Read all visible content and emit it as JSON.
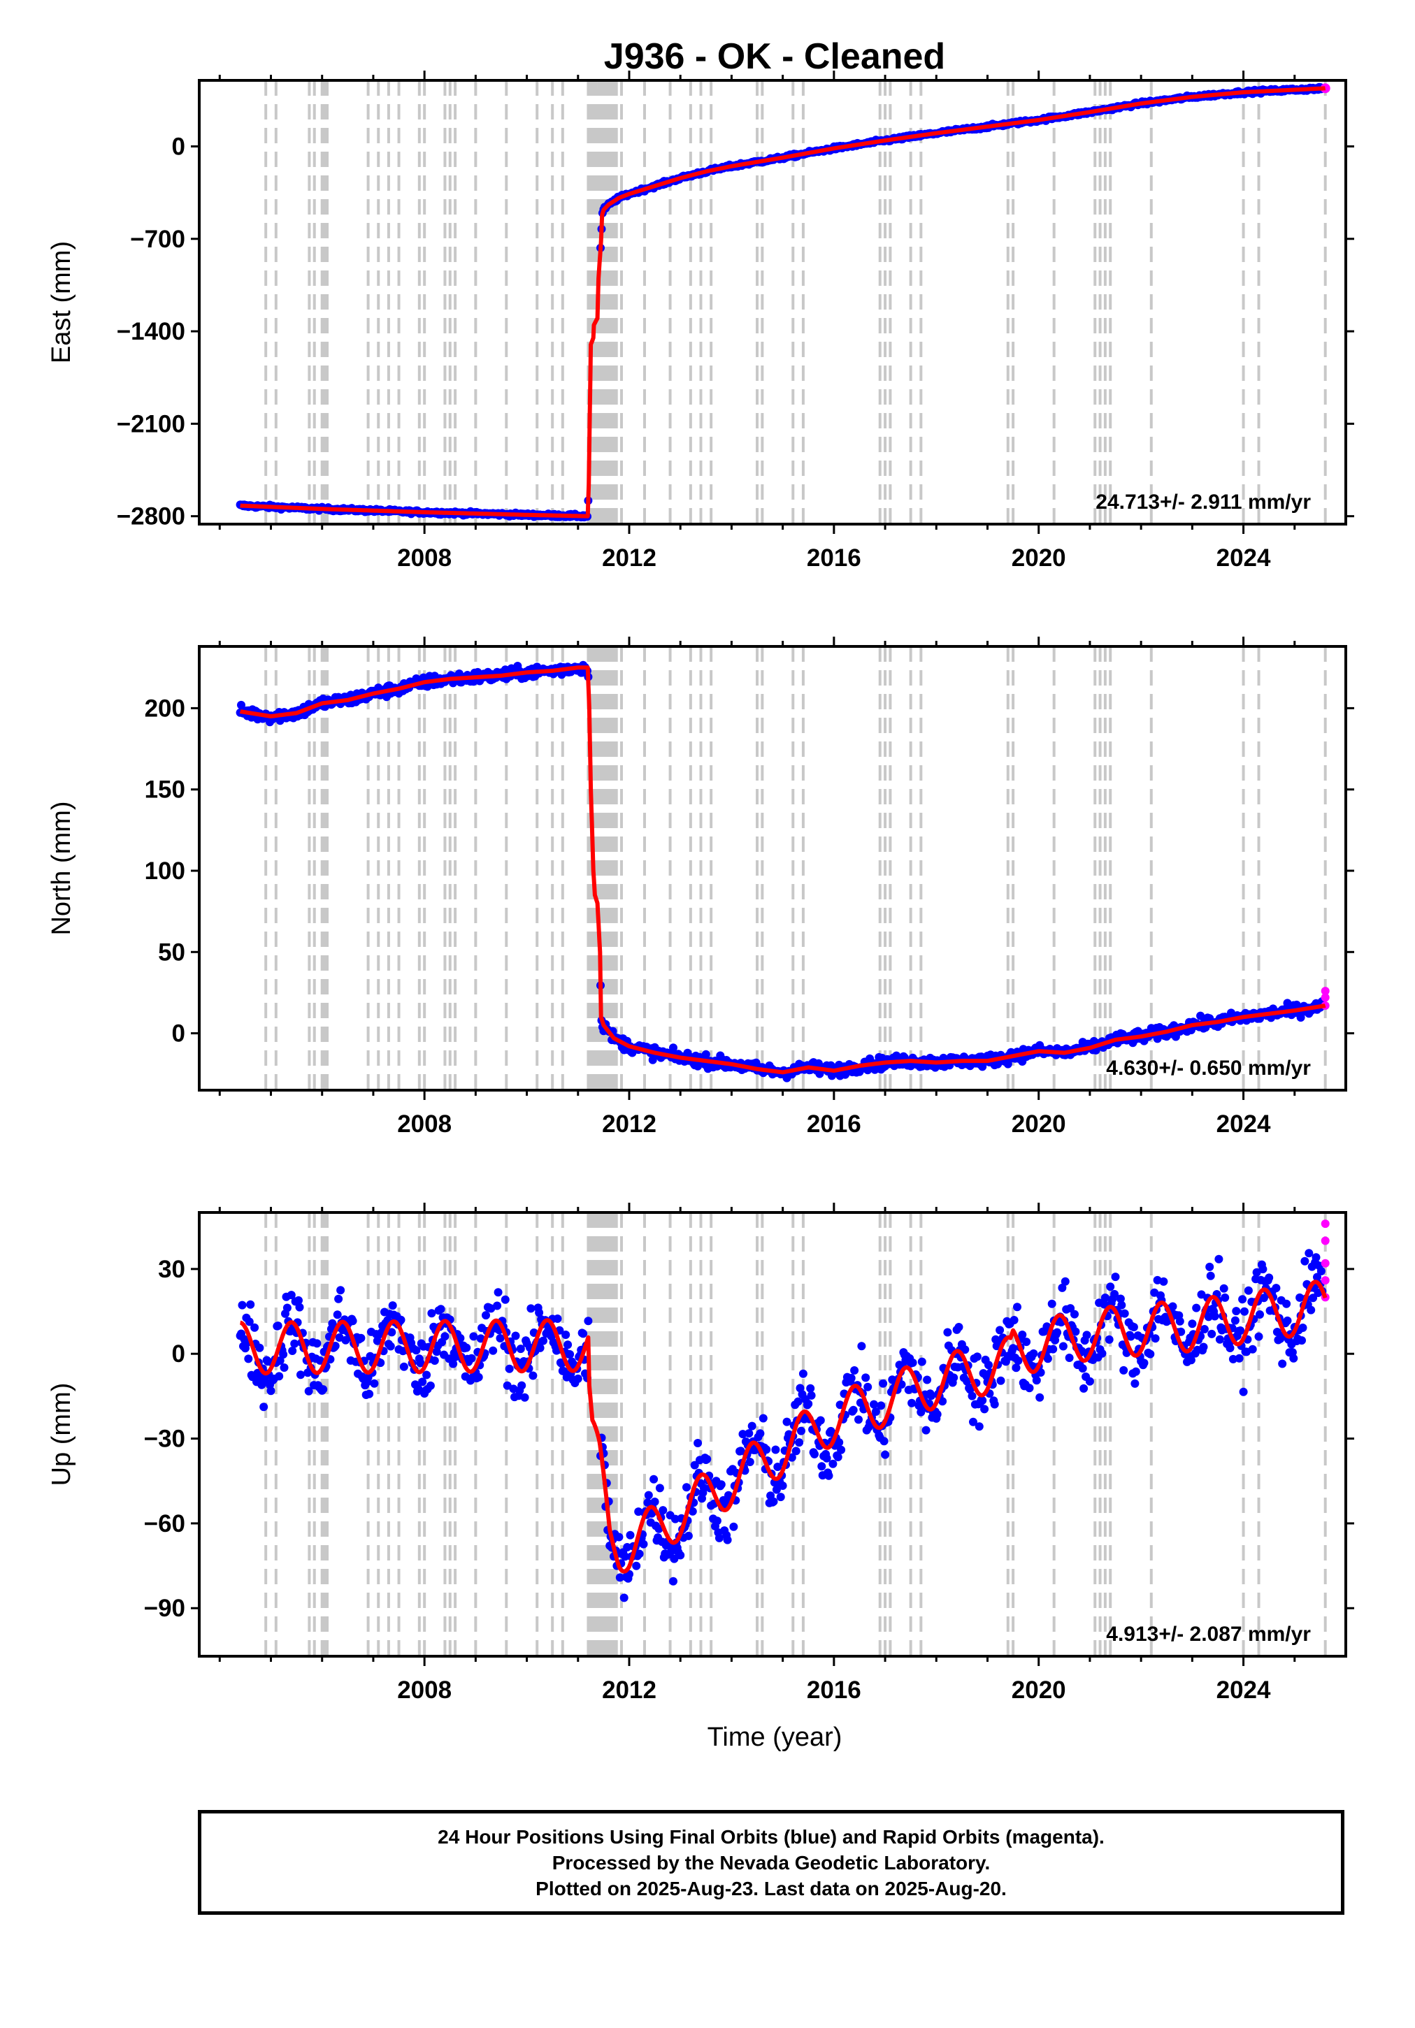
{
  "figure": {
    "title": "J936  - OK - Cleaned",
    "xlabel": "Time (year)",
    "footer_lines": [
      "24 Hour Positions Using Final Orbits (blue) and Rapid Orbits (magenta).",
      "Processed by the Nevada Geodetic Laboratory.",
      "Plotted on 2025-Aug-23. Last data on 2025-Aug-20."
    ]
  },
  "colors": {
    "final": "#0000ff",
    "rapid": "#ff00ff",
    "model": "#ff0000",
    "steps": "#c8c8c8"
  },
  "steps": [
    2004.9,
    2005.1,
    2005.75,
    2005.85,
    2006.0,
    2006.05,
    2006.1,
    2006.9,
    2007.1,
    2007.3,
    2007.5,
    2007.9,
    2008.0,
    2008.4,
    2008.5,
    2008.6,
    2009.0,
    2009.6,
    2010.2,
    2010.5,
    2010.7,
    2011.2,
    2011.25,
    2011.3,
    2011.35,
    2011.4,
    2011.45,
    2011.5,
    2011.55,
    2011.6,
    2011.65,
    2011.7,
    2011.75,
    2011.85,
    2012.3,
    2012.8,
    2013.2,
    2013.4,
    2013.6,
    2014.5,
    2014.6,
    2015.2,
    2015.4,
    2016.9,
    2017.0,
    2017.1,
    2017.5,
    2017.7,
    2019.4,
    2019.5,
    2020.3,
    2021.1,
    2021.2,
    2021.3,
    2021.4,
    2022.2,
    2024.0,
    2024.3,
    2025.6
  ],
  "chart_data": [
    {
      "type": "scatter",
      "name": "east",
      "ylabel": "East (mm)",
      "rate_text": "24.713+/- 2.911 mm/yr",
      "xlim": [
        2003.6,
        2026.0
      ],
      "ylim": [
        -2860,
        500
      ],
      "xticks": [
        2008,
        2012,
        2016,
        2020,
        2024
      ],
      "yticks": [
        0,
        -700,
        -1400,
        -2100,
        -2800
      ],
      "series": [
        {
          "role": "model",
          "x": [
            2004.4,
            2006.0,
            2008.0,
            2010.0,
            2011.19,
            2011.21,
            2011.25,
            2011.3,
            2011.3,
            2011.38,
            2011.4,
            2011.45,
            2011.47,
            2011.5,
            2011.6,
            2011.8,
            2012.0,
            2012.5,
            2013.0,
            2013.5,
            2014.0,
            2015.0,
            2016.0,
            2017.0,
            2018.0,
            2019.0,
            2020.0,
            2021.0,
            2022.0,
            2023.0,
            2024.0,
            2025.6
          ],
          "y": [
            -2720,
            -2745,
            -2770,
            -2790,
            -2800,
            -2560,
            -1500,
            -1450,
            -1360,
            -1300,
            -1000,
            -720,
            -520,
            -480,
            -440,
            -390,
            -360,
            -300,
            -240,
            -190,
            -150,
            -85,
            -15,
            45,
            100,
            150,
            200,
            260,
            325,
            375,
            410,
            440
          ]
        }
      ]
    },
    {
      "type": "scatter",
      "name": "north",
      "ylabel": "North (mm)",
      "rate_text": "4.630+/- 0.650 mm/yr",
      "xlim": [
        2003.6,
        2026.0
      ],
      "ylim": [
        -35,
        238
      ],
      "xticks": [
        2008,
        2012,
        2016,
        2020,
        2024
      ],
      "yticks": [
        200,
        150,
        100,
        50,
        0
      ],
      "series": [
        {
          "role": "model",
          "x": [
            2004.4,
            2005.0,
            2005.5,
            2006.0,
            2006.5,
            2007.0,
            2007.5,
            2008.0,
            2008.5,
            2009.0,
            2009.5,
            2010.0,
            2010.5,
            2011.0,
            2011.19,
            2011.22,
            2011.25,
            2011.3,
            2011.33,
            2011.38,
            2011.43,
            2011.45,
            2011.5,
            2011.7,
            2012.0,
            2012.5,
            2013.0,
            2013.5,
            2014.0,
            2014.5,
            2015.0,
            2015.5,
            2016.0,
            2016.5,
            2017.0,
            2017.5,
            2018.0,
            2018.5,
            2019.0,
            2019.5,
            2020.0,
            2020.5,
            2021.0,
            2021.5,
            2022.0,
            2022.5,
            2023.0,
            2023.5,
            2024.0,
            2024.5,
            2025.0,
            2025.6
          ],
          "y": [
            198,
            195,
            197,
            203,
            205,
            209,
            212,
            216,
            218,
            219,
            220,
            222,
            223,
            225,
            225,
            200,
            150,
            100,
            85,
            80,
            50,
            10,
            5,
            -3,
            -8,
            -12,
            -15,
            -17,
            -19,
            -22,
            -24,
            -21,
            -23,
            -20,
            -18,
            -17,
            -18,
            -17,
            -17,
            -14,
            -11,
            -12,
            -9,
            -4,
            -2,
            1,
            5,
            7,
            10,
            12,
            14,
            17
          ]
        },
        {
          "role": "rapid",
          "x": [
            2025.6,
            2025.6,
            2025.6
          ],
          "y": [
            17,
            22,
            26
          ]
        }
      ]
    },
    {
      "type": "scatter",
      "name": "up",
      "ylabel": "Up (mm)",
      "rate_text": "4.913+/- 2.087 mm/yr",
      "xlim": [
        2003.6,
        2026.0
      ],
      "ylim": [
        -107,
        50
      ],
      "xticks": [
        2008,
        2012,
        2016,
        2020,
        2024
      ],
      "yticks": [
        30,
        0,
        -30,
        -60,
        -90
      ],
      "series": [
        {
          "role": "model",
          "trend": [
            [
              2004.4,
              2.0
            ],
            [
              2011.2,
              3.0
            ],
            [
              2011.22,
              -15.0
            ],
            [
              2011.28,
              -30.0
            ],
            [
              2011.42,
              -40.0
            ],
            [
              2011.62,
              -64.0
            ],
            [
              2011.8,
              -68.0
            ],
            [
              2012.0,
              -68.0
            ],
            [
              2014.0,
              -45.0
            ],
            [
              2016.0,
              -23.0
            ],
            [
              2018.0,
              -10.0
            ],
            [
              2019.45,
              -3.0
            ],
            [
              2019.5,
              1.0
            ],
            [
              2021.0,
              7.0
            ],
            [
              2023.0,
              10.0
            ],
            [
              2024.5,
              14.0
            ],
            [
              2025.6,
              17.0
            ]
          ],
          "seasonal_amplitude_mm": 9
        },
        {
          "role": "rapid",
          "x": [
            2025.6,
            2025.6,
            2025.6,
            2025.6,
            2025.6
          ],
          "y": [
            46,
            40,
            32,
            26,
            20
          ]
        }
      ]
    }
  ]
}
